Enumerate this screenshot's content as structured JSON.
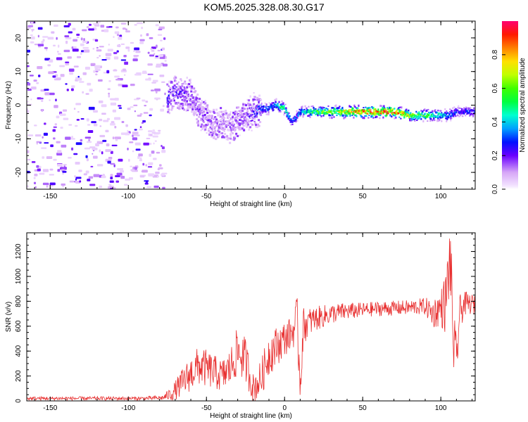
{
  "title": "KOM5.2025.328.08.30.G17",
  "colors": {
    "line": "#e83030",
    "frame": "#000000"
  },
  "chart_data": [
    {
      "type": "heatmap",
      "name": "doppler-spectrogram",
      "xlabel": "Height of straight line (km)",
      "ylabel": "Frequency (Hz)",
      "xlim": [
        -165,
        122
      ],
      "ylim": [
        -25,
        25
      ],
      "xticks": [
        -150,
        -100,
        -50,
        0,
        50,
        100
      ],
      "yticks": [
        -20,
        -10,
        0,
        10,
        20
      ],
      "colorbar": {
        "label": "Normalized spectral amplitude",
        "range": [
          0,
          1
        ],
        "ticks": [
          "0.0",
          "0.2",
          "0.4",
          "0.6",
          "0.8"
        ],
        "tick_values": [
          0.0,
          0.2,
          0.4,
          0.6,
          0.8
        ]
      },
      "noise_region_x": [
        -165,
        -76
      ],
      "trace": {
        "x": [
          -75,
          -70,
          -65,
          -60,
          -55,
          -50,
          -45,
          -40,
          -35,
          -30,
          -25,
          -20,
          -15,
          -10,
          -5,
          0,
          5,
          10,
          15,
          20,
          30,
          40,
          50,
          60,
          70,
          80,
          90,
          100,
          105,
          110,
          115,
          120
        ],
        "freq": [
          2,
          4,
          3,
          3,
          -2,
          -4,
          -6,
          -5,
          -7,
          -5,
          -3,
          -2,
          -1,
          -1,
          0,
          -1,
          -5,
          -2,
          -2,
          -2,
          -2,
          -2,
          -2,
          -2,
          -2,
          -3,
          -3,
          -3,
          -3,
          -2,
          -2,
          -2
        ],
        "amplitude": [
          0.3,
          0.25,
          0.25,
          0.2,
          0.2,
          0.2,
          0.15,
          0.15,
          0.15,
          0.15,
          0.2,
          0.3,
          0.35,
          0.35,
          0.45,
          0.55,
          0.3,
          0.4,
          0.5,
          0.6,
          0.7,
          0.8,
          0.95,
          0.95,
          0.95,
          0.75,
          0.6,
          0.5,
          0.4,
          0.3,
          0.3,
          0.3
        ]
      }
    },
    {
      "type": "line",
      "name": "snr-profile",
      "xlabel": "Height of straight line (km)",
      "ylabel": "SNR (v/v)",
      "xlim": [
        -165,
        122
      ],
      "ylim": [
        0,
        1350
      ],
      "xticks": [
        -150,
        -100,
        -50,
        0,
        50,
        100
      ],
      "yticks": [
        0,
        200,
        400,
        600,
        800,
        1000,
        1200
      ],
      "series": [
        {
          "name": "SNR",
          "x": [
            -165,
            -140,
            -110,
            -90,
            -78,
            -72,
            -65,
            -60,
            -55,
            -50,
            -45,
            -40,
            -35,
            -30,
            -25,
            -20,
            -15,
            -10,
            -5,
            0,
            5,
            8,
            10,
            12,
            15,
            20,
            30,
            40,
            50,
            60,
            70,
            80,
            90,
            95,
            100,
            103,
            106,
            108,
            110,
            112,
            115,
            120,
            122
          ],
          "values": [
            20,
            20,
            20,
            20,
            25,
            60,
            150,
            220,
            280,
            260,
            230,
            200,
            260,
            400,
            330,
            100,
            180,
            380,
            440,
            500,
            550,
            650,
            150,
            600,
            630,
            660,
            700,
            720,
            730,
            740,
            745,
            750,
            760,
            700,
            750,
            780,
            1150,
            500,
            300,
            700,
            780,
            780,
            760
          ],
          "spread": [
            15,
            15,
            15,
            15,
            20,
            60,
            120,
            140,
            160,
            150,
            140,
            130,
            160,
            200,
            180,
            120,
            150,
            180,
            160,
            140,
            130,
            200,
            200,
            150,
            120,
            100,
            80,
            70,
            60,
            60,
            60,
            60,
            70,
            120,
            150,
            250,
            300,
            300,
            200,
            150,
            100,
            80,
            80
          ]
        }
      ]
    }
  ]
}
